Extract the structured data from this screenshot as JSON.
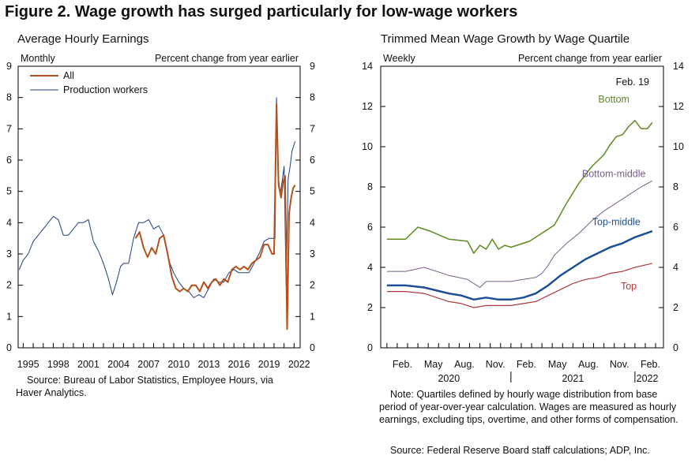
{
  "figure_title": "Figure 2. Wage growth has surged particularly for low-wage workers",
  "left_panel": {
    "title": "Average Hourly Earnings",
    "frequency": "Monthly",
    "units": "Percent change from year earlier",
    "source": "Source: Bureau of Labor Statistics, Employee Hours, via Haver Analytics."
  },
  "right_panel": {
    "title": "Trimmed Mean Wage Growth by Wage Quartile",
    "frequency": "Weekly",
    "units": "Percent change from year earlier",
    "annotation": "Feb. 19",
    "note": "Note: Quartiles defined by hourly wage distribution from base period of year-over-year calculation. Wages are measured as hourly earnings, excluding tips, overtime, and other forms of compensation.",
    "source": "Source: Federal Reserve Board staff calculations; ADP, Inc."
  },
  "colors": {
    "all": "#b5501a",
    "production": "#1f3f7a",
    "bottom": "#5e8a1f",
    "bottom_middle": "#7a5d8e",
    "top_middle": "#1d4f96",
    "top": "#b23a3a"
  },
  "chart_data": [
    {
      "type": "line",
      "title": "Average Hourly Earnings",
      "xlim": [
        1994.5,
        2022.6
      ],
      "ylim": [
        0,
        9
      ],
      "x_ticks": [
        "1995",
        "1998",
        "2001",
        "2004",
        "2007",
        "2010",
        "2013",
        "2016",
        "2019",
        "2022"
      ],
      "y_ticks": [
        0,
        1,
        2,
        3,
        4,
        5,
        6,
        7,
        8,
        9
      ],
      "legend_position": "top-left",
      "series": [
        {
          "name": "All",
          "x": [
            2006.2,
            2006.6,
            2007.0,
            2007.4,
            2007.8,
            2008.2,
            2008.6,
            2009.0,
            2009.4,
            2009.8,
            2010.2,
            2010.6,
            2011.0,
            2011.4,
            2011.8,
            2012.2,
            2012.6,
            2013.0,
            2013.4,
            2013.8,
            2014.2,
            2014.6,
            2015.0,
            2015.4,
            2015.8,
            2016.2,
            2016.6,
            2017.0,
            2017.4,
            2017.8,
            2018.2,
            2018.6,
            2019.0,
            2019.4,
            2019.8,
            2020.0,
            2020.25,
            2020.45,
            2020.7,
            2020.9,
            2021.1,
            2021.3,
            2021.5,
            2021.7,
            2021.9,
            2022.1
          ],
          "values": [
            3.5,
            3.7,
            3.2,
            2.9,
            3.2,
            3.0,
            3.5,
            3.6,
            3.0,
            2.3,
            1.9,
            1.8,
            1.9,
            1.8,
            2.0,
            2.0,
            1.8,
            2.1,
            1.9,
            2.1,
            2.2,
            2.0,
            2.2,
            2.1,
            2.5,
            2.6,
            2.5,
            2.6,
            2.5,
            2.7,
            2.8,
            2.9,
            3.3,
            3.3,
            3.0,
            3.0,
            7.8,
            5.2,
            4.8,
            5.3,
            5.5,
            0.6,
            4.3,
            4.8,
            5.1,
            5.2
          ]
        },
        {
          "name": "Production workers",
          "x": [
            1994.6,
            1995.0,
            1995.5,
            1996.0,
            1996.5,
            1997.0,
            1997.5,
            1998.0,
            1998.5,
            1999.0,
            1999.5,
            2000.0,
            2000.5,
            2001.0,
            2001.5,
            2002.0,
            2002.5,
            2003.0,
            2003.5,
            2003.9,
            2004.3,
            2004.7,
            2005.0,
            2005.5,
            2006.0,
            2006.5,
            2007.0,
            2007.5,
            2008.0,
            2008.5,
            2009.0,
            2009.5,
            2010.0,
            2010.5,
            2011.0,
            2011.5,
            2012.0,
            2012.5,
            2013.0,
            2013.5,
            2014.0,
            2014.5,
            2015.0,
            2015.5,
            2016.0,
            2016.5,
            2017.0,
            2017.5,
            2018.0,
            2018.5,
            2019.0,
            2019.5,
            2019.9,
            2020.1,
            2020.25,
            2020.4,
            2020.6,
            2020.8,
            2021.0,
            2021.2,
            2021.4,
            2021.6,
            2021.8,
            2022.0,
            2022.1
          ],
          "values": [
            2.5,
            2.8,
            3.0,
            3.4,
            3.6,
            3.8,
            4.0,
            4.2,
            4.1,
            3.6,
            3.6,
            3.8,
            4.0,
            4.0,
            4.1,
            3.4,
            3.1,
            2.7,
            2.2,
            1.7,
            2.1,
            2.6,
            2.7,
            2.7,
            3.5,
            4.0,
            4.0,
            4.1,
            3.8,
            3.9,
            3.6,
            2.8,
            2.4,
            2.1,
            1.9,
            1.8,
            1.6,
            1.7,
            1.6,
            1.9,
            2.2,
            2.1,
            2.1,
            2.4,
            2.5,
            2.4,
            2.4,
            2.4,
            2.7,
            3.0,
            3.4,
            3.5,
            3.5,
            3.5,
            8.0,
            5.6,
            4.9,
            5.3,
            5.8,
            2.0,
            5.4,
            5.8,
            6.3,
            6.5,
            6.6
          ]
        }
      ]
    },
    {
      "type": "line",
      "title": "Trimmed Mean Wage Growth by Wage Quartile",
      "xlim": [
        2019.95,
        2022.23
      ],
      "ylim": [
        0,
        14
      ],
      "x_ticks": [
        "Feb.",
        "May",
        "Aug.",
        "Nov.",
        "Feb.",
        "May",
        "Aug.",
        "Nov.",
        "Feb."
      ],
      "x_tick_positions": [
        2020.083,
        2020.333,
        2020.583,
        2020.833,
        2021.083,
        2021.333,
        2021.583,
        2021.833,
        2022.083
      ],
      "year_labels": [
        "2020",
        "2021",
        "2022"
      ],
      "y_ticks": [
        0,
        2,
        4,
        6,
        8,
        10,
        12,
        14
      ],
      "series": [
        {
          "name": "Bottom",
          "x": [
            2020.0,
            2020.15,
            2020.25,
            2020.35,
            2020.5,
            2020.65,
            2020.7,
            2020.75,
            2020.8,
            2020.85,
            2020.9,
            2020.95,
            2021.0,
            2021.1,
            2021.15,
            2021.2,
            2021.25,
            2021.35,
            2021.45,
            2021.55,
            2021.65,
            2021.75,
            2021.8,
            2021.85,
            2021.9,
            2021.95,
            2022.0,
            2022.05,
            2022.1,
            2022.14
          ],
          "values": [
            5.4,
            5.4,
            6.0,
            5.8,
            5.4,
            5.3,
            4.7,
            5.1,
            4.9,
            5.4,
            4.9,
            5.1,
            5.0,
            5.2,
            5.3,
            5.5,
            5.7,
            6.1,
            7.2,
            8.2,
            9.0,
            9.6,
            10.1,
            10.5,
            10.6,
            11.0,
            11.3,
            10.9,
            10.9,
            11.2
          ]
        },
        {
          "name": "Bottom-middle",
          "x": [
            2020.0,
            2020.15,
            2020.3,
            2020.5,
            2020.65,
            2020.75,
            2020.8,
            2020.9,
            2021.0,
            2021.1,
            2021.2,
            2021.25,
            2021.3,
            2021.35,
            2021.45,
            2021.55,
            2021.65,
            2021.75,
            2021.85,
            2021.95,
            2022.05,
            2022.14
          ],
          "values": [
            3.8,
            3.8,
            4.0,
            3.6,
            3.4,
            3.0,
            3.3,
            3.3,
            3.3,
            3.4,
            3.5,
            3.7,
            4.1,
            4.6,
            5.2,
            5.7,
            6.3,
            6.8,
            7.2,
            7.6,
            8.0,
            8.3
          ]
        },
        {
          "name": "Top-middle",
          "x": [
            2020.0,
            2020.15,
            2020.3,
            2020.5,
            2020.6,
            2020.7,
            2020.8,
            2020.9,
            2021.0,
            2021.1,
            2021.2,
            2021.3,
            2021.4,
            2021.5,
            2021.6,
            2021.7,
            2021.8,
            2021.9,
            2022.0,
            2022.14
          ],
          "values": [
            3.1,
            3.1,
            3.0,
            2.7,
            2.6,
            2.4,
            2.5,
            2.4,
            2.4,
            2.5,
            2.7,
            3.1,
            3.6,
            4.0,
            4.4,
            4.7,
            5.0,
            5.2,
            5.5,
            5.8
          ]
        },
        {
          "name": "Top",
          "x": [
            2020.0,
            2020.15,
            2020.3,
            2020.5,
            2020.6,
            2020.7,
            2020.8,
            2020.9,
            2021.0,
            2021.1,
            2021.2,
            2021.3,
            2021.4,
            2021.5,
            2021.6,
            2021.7,
            2021.8,
            2021.9,
            2022.0,
            2022.14
          ],
          "values": [
            2.8,
            2.8,
            2.7,
            2.3,
            2.2,
            2.0,
            2.1,
            2.1,
            2.1,
            2.2,
            2.3,
            2.6,
            2.9,
            3.2,
            3.4,
            3.5,
            3.7,
            3.8,
            4.0,
            4.2
          ]
        }
      ]
    }
  ]
}
